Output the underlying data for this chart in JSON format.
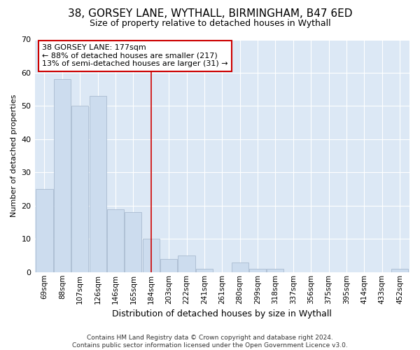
{
  "title1": "38, GORSEY LANE, WYTHALL, BIRMINGHAM, B47 6ED",
  "title2": "Size of property relative to detached houses in Wythall",
  "xlabel": "Distribution of detached houses by size in Wythall",
  "ylabel": "Number of detached properties",
  "footnote": "Contains HM Land Registry data © Crown copyright and database right 2024.\nContains public sector information licensed under the Open Government Licence v3.0.",
  "categories": [
    "69sqm",
    "88sqm",
    "107sqm",
    "126sqm",
    "146sqm",
    "165sqm",
    "184sqm",
    "203sqm",
    "222sqm",
    "241sqm",
    "261sqm",
    "280sqm",
    "299sqm",
    "318sqm",
    "337sqm",
    "356sqm",
    "375sqm",
    "395sqm",
    "414sqm",
    "433sqm",
    "452sqm"
  ],
  "values": [
    25,
    58,
    50,
    53,
    19,
    18,
    10,
    4,
    5,
    1,
    0,
    3,
    1,
    1,
    0,
    0,
    0,
    0,
    0,
    0,
    1
  ],
  "bar_color": "#ccdcee",
  "bar_edge_color": "#aabbd0",
  "background_color": "#dce8f5",
  "grid_color": "#ffffff",
  "annotation_text": "38 GORSEY LANE: 177sqm\n← 88% of detached houses are smaller (217)\n13% of semi-detached houses are larger (31) →",
  "vline_position": 6,
  "vline_color": "#cc0000",
  "annotation_box_color": "#cc0000",
  "ylim": [
    0,
    70
  ],
  "yticks": [
    0,
    10,
    20,
    30,
    40,
    50,
    60,
    70
  ],
  "title1_fontsize": 11,
  "title2_fontsize": 9,
  "xlabel_fontsize": 9,
  "ylabel_fontsize": 8,
  "footnote_fontsize": 6.5,
  "tick_fontsize": 7.5,
  "annotation_fontsize": 8
}
